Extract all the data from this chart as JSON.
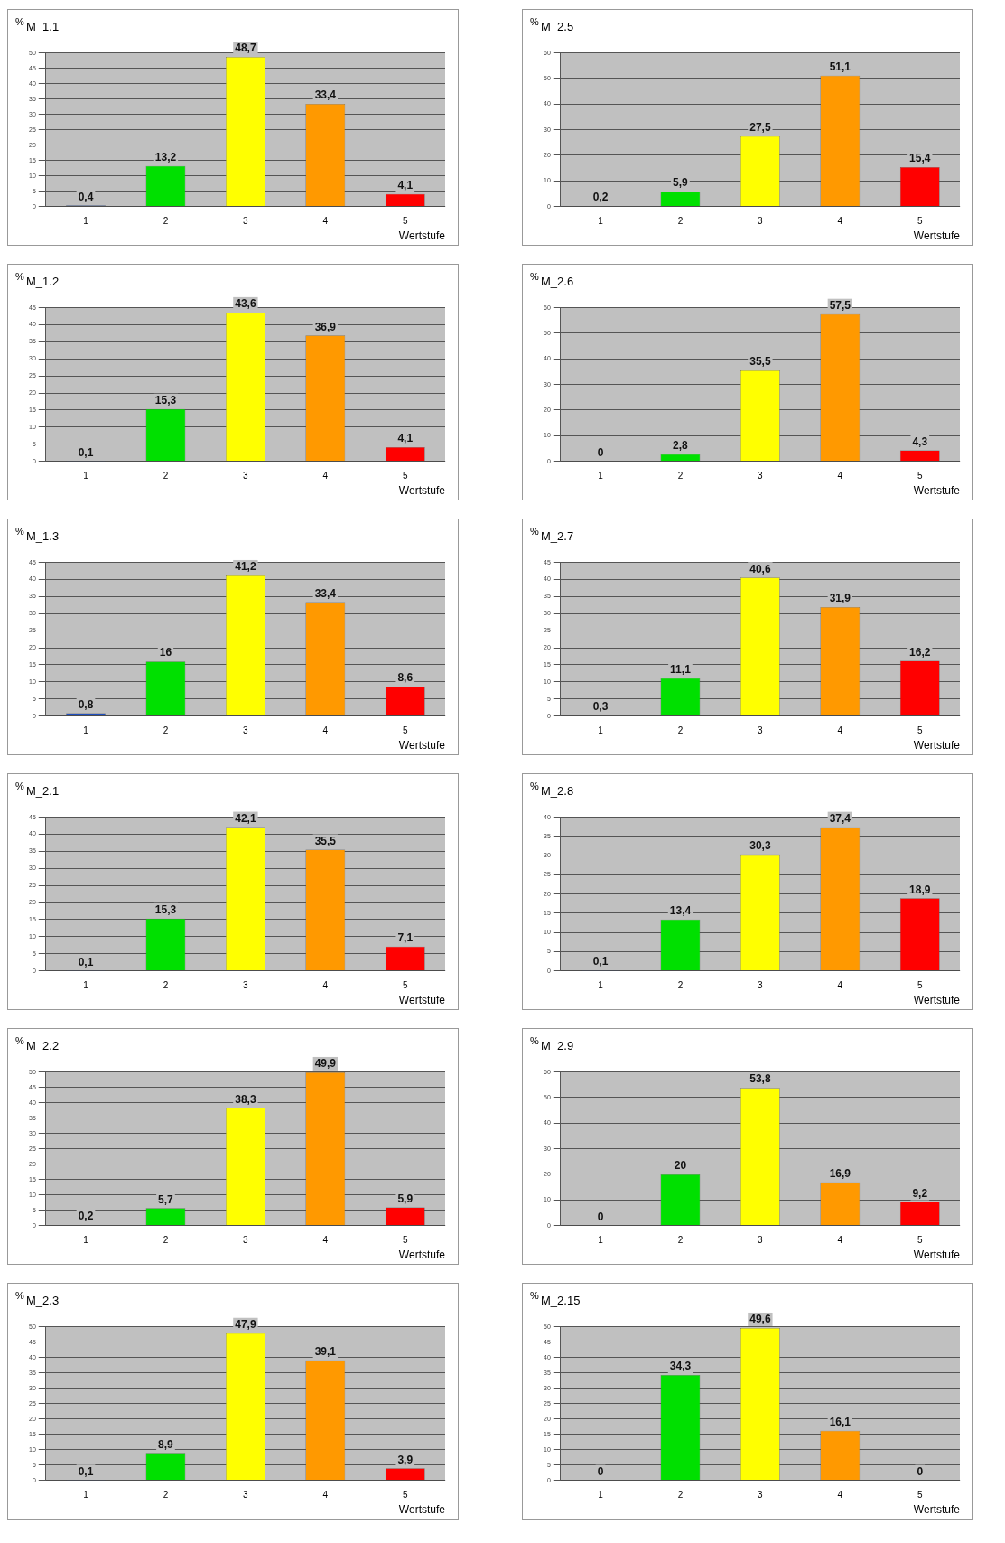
{
  "chart_data": [
    {
      "type": "bar",
      "title": "M_1.1",
      "ylabel": "%",
      "xlabel": "Wertstufe",
      "categories": [
        "1",
        "2",
        "3",
        "4",
        "5"
      ],
      "values": [
        0.4,
        13.2,
        48.7,
        33.4,
        4.1
      ],
      "value_labels": [
        "0,4",
        "13,2",
        "48,7",
        "33,4",
        "4,1"
      ],
      "colors": [
        "#1f4fbf",
        "#00e000",
        "#ffff00",
        "#ff9900",
        "#ff0000"
      ],
      "ylim": [
        0,
        50
      ],
      "yticks": [
        0,
        5,
        10,
        15,
        20,
        25,
        30,
        35,
        40,
        45,
        50
      ],
      "grid": "y"
    },
    {
      "type": "bar",
      "title": "M_2.5",
      "ylabel": "%",
      "xlabel": "Wertstufe",
      "categories": [
        "1",
        "2",
        "3",
        "4",
        "5"
      ],
      "values": [
        0.2,
        5.9,
        27.5,
        51.1,
        15.4
      ],
      "value_labels": [
        "0,2",
        "5,9",
        "27,5",
        "51,1",
        "15,4"
      ],
      "colors": [
        "#1f4fbf",
        "#00e000",
        "#ffff00",
        "#ff9900",
        "#ff0000"
      ],
      "ylim": [
        0,
        60
      ],
      "yticks": [
        0,
        10,
        20,
        30,
        40,
        50,
        60
      ],
      "grid": "y"
    },
    {
      "type": "bar",
      "title": "M_1.2",
      "ylabel": "%",
      "xlabel": "Wertstufe",
      "categories": [
        "1",
        "2",
        "3",
        "4",
        "5"
      ],
      "values": [
        0.1,
        15.3,
        43.6,
        36.9,
        4.1
      ],
      "value_labels": [
        "0,1",
        "15,3",
        "43,6",
        "36,9",
        "4,1"
      ],
      "colors": [
        "#1f4fbf",
        "#00e000",
        "#ffff00",
        "#ff9900",
        "#ff0000"
      ],
      "ylim": [
        0,
        45
      ],
      "yticks": [
        0,
        5,
        10,
        15,
        20,
        25,
        30,
        35,
        40,
        45
      ],
      "grid": "y"
    },
    {
      "type": "bar",
      "title": "M_2.6",
      "ylabel": "%",
      "xlabel": "Wertstufe",
      "categories": [
        "1",
        "2",
        "3",
        "4",
        "5"
      ],
      "values": [
        0,
        2.8,
        35.5,
        57.5,
        4.3
      ],
      "value_labels": [
        "0",
        "2,8",
        "35,5",
        "57,5",
        "4,3"
      ],
      "colors": [
        "#1f4fbf",
        "#00e000",
        "#ffff00",
        "#ff9900",
        "#ff0000"
      ],
      "ylim": [
        0,
        60
      ],
      "yticks": [
        0,
        10,
        20,
        30,
        40,
        50,
        60
      ],
      "grid": "y"
    },
    {
      "type": "bar",
      "title": "M_1.3",
      "ylabel": "%",
      "xlabel": "Wertstufe",
      "categories": [
        "1",
        "2",
        "3",
        "4",
        "5"
      ],
      "values": [
        0.8,
        16,
        41.2,
        33.4,
        8.6
      ],
      "value_labels": [
        "0,8",
        "16",
        "41,2",
        "33,4",
        "8,6"
      ],
      "colors": [
        "#1f4fbf",
        "#00e000",
        "#ffff00",
        "#ff9900",
        "#ff0000"
      ],
      "ylim": [
        0,
        45
      ],
      "yticks": [
        0,
        5,
        10,
        15,
        20,
        25,
        30,
        35,
        40,
        45
      ],
      "grid": "y"
    },
    {
      "type": "bar",
      "title": "M_2.7",
      "ylabel": "%",
      "xlabel": "Wertstufe",
      "categories": [
        "1",
        "2",
        "3",
        "4",
        "5"
      ],
      "values": [
        0.3,
        11.1,
        40.6,
        31.9,
        16.2
      ],
      "value_labels": [
        "0,3",
        "11,1",
        "40,6",
        "31,9",
        "16,2"
      ],
      "colors": [
        "#1f4fbf",
        "#00e000",
        "#ffff00",
        "#ff9900",
        "#ff0000"
      ],
      "ylim": [
        0,
        45
      ],
      "yticks": [
        0,
        5,
        10,
        15,
        20,
        25,
        30,
        35,
        40,
        45
      ],
      "grid": "y"
    },
    {
      "type": "bar",
      "title": "M_2.1",
      "ylabel": "%",
      "xlabel": "Wertstufe",
      "categories": [
        "1",
        "2",
        "3",
        "4",
        "5"
      ],
      "values": [
        0.1,
        15.3,
        42.1,
        35.5,
        7.1
      ],
      "value_labels": [
        "0,1",
        "15,3",
        "42,1",
        "35,5",
        "7,1"
      ],
      "colors": [
        "#1f4fbf",
        "#00e000",
        "#ffff00",
        "#ff9900",
        "#ff0000"
      ],
      "ylim": [
        0,
        45
      ],
      "yticks": [
        0,
        5,
        10,
        15,
        20,
        25,
        30,
        35,
        40,
        45
      ],
      "grid": "y"
    },
    {
      "type": "bar",
      "title": "M_2.8",
      "ylabel": "%",
      "xlabel": "Wertstufe",
      "categories": [
        "1",
        "2",
        "3",
        "4",
        "5"
      ],
      "values": [
        0.1,
        13.4,
        30.3,
        37.4,
        18.9
      ],
      "value_labels": [
        "0,1",
        "13,4",
        "30,3",
        "37,4",
        "18,9"
      ],
      "colors": [
        "#1f4fbf",
        "#00e000",
        "#ffff00",
        "#ff9900",
        "#ff0000"
      ],
      "ylim": [
        0,
        40
      ],
      "yticks": [
        0,
        5,
        10,
        15,
        20,
        25,
        30,
        35,
        40
      ],
      "grid": "y"
    },
    {
      "type": "bar",
      "title": "M_2.2",
      "ylabel": "%",
      "xlabel": "Wertstufe",
      "categories": [
        "1",
        "2",
        "3",
        "4",
        "5"
      ],
      "values": [
        0.2,
        5.7,
        38.3,
        49.9,
        5.9
      ],
      "value_labels": [
        "0,2",
        "5,7",
        "38,3",
        "49,9",
        "5,9"
      ],
      "colors": [
        "#1f4fbf",
        "#00e000",
        "#ffff00",
        "#ff9900",
        "#ff0000"
      ],
      "ylim": [
        0,
        50
      ],
      "yticks": [
        0,
        5,
        10,
        15,
        20,
        25,
        30,
        35,
        40,
        45,
        50
      ],
      "grid": "y"
    },
    {
      "type": "bar",
      "title": "M_2.9",
      "ylabel": "%",
      "xlabel": "Wertstufe",
      "categories": [
        "1",
        "2",
        "3",
        "4",
        "5"
      ],
      "values": [
        0,
        20,
        53.8,
        16.9,
        9.2
      ],
      "value_labels": [
        "0",
        "20",
        "53,8",
        "16,9",
        "9,2"
      ],
      "colors": [
        "#1f4fbf",
        "#00e000",
        "#ffff00",
        "#ff9900",
        "#ff0000"
      ],
      "ylim": [
        0,
        60
      ],
      "yticks": [
        0,
        10,
        20,
        30,
        40,
        50,
        60
      ],
      "grid": "y"
    },
    {
      "type": "bar",
      "title": "M_2.3",
      "ylabel": "%",
      "xlabel": "Wertstufe",
      "categories": [
        "1",
        "2",
        "3",
        "4",
        "5"
      ],
      "values": [
        0.1,
        8.9,
        47.9,
        39.1,
        3.9
      ],
      "value_labels": [
        "0,1",
        "8,9",
        "47,9",
        "39,1",
        "3,9"
      ],
      "colors": [
        "#1f4fbf",
        "#00e000",
        "#ffff00",
        "#ff9900",
        "#ff0000"
      ],
      "ylim": [
        0,
        50
      ],
      "yticks": [
        0,
        5,
        10,
        15,
        20,
        25,
        30,
        35,
        40,
        45,
        50
      ],
      "grid": "y"
    },
    {
      "type": "bar",
      "title": "M_2.15",
      "ylabel": "%",
      "xlabel": "Wertstufe",
      "categories": [
        "1",
        "2",
        "3",
        "4",
        "5"
      ],
      "values": [
        0,
        34.3,
        49.6,
        16.1,
        0
      ],
      "value_labels": [
        "0",
        "34,3",
        "49,6",
        "16,1",
        "0"
      ],
      "colors": [
        "#1f4fbf",
        "#00e000",
        "#ffff00",
        "#ff9900",
        "#ff0000"
      ],
      "ylim": [
        0,
        50
      ],
      "yticks": [
        0,
        5,
        10,
        15,
        20,
        25,
        30,
        35,
        40,
        45,
        50
      ],
      "grid": "y"
    }
  ]
}
